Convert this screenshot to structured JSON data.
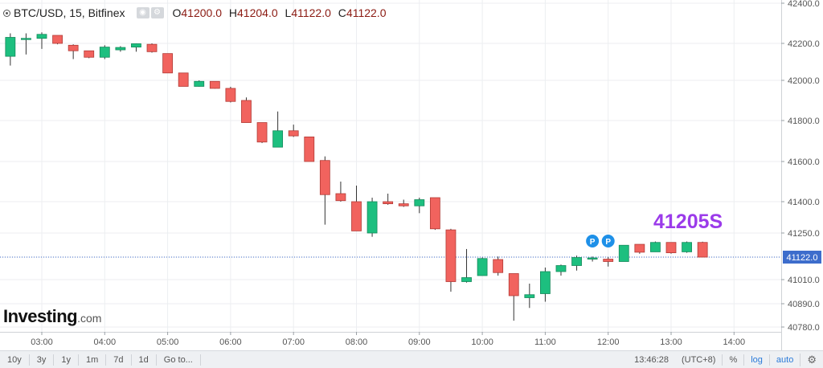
{
  "header": {
    "title": "BTC/USD, 15, Bitfinex",
    "ohlc": [
      {
        "k": "O",
        "v": "41200.0"
      },
      {
        "k": "H",
        "v": "41204.0"
      },
      {
        "k": "L",
        "v": "41122.0"
      },
      {
        "k": "C",
        "v": "41122.0"
      }
    ]
  },
  "logo": {
    "main": "Investing",
    "suffix": ".com"
  },
  "annotation": "41205S",
  "markers": [
    "P",
    "P"
  ],
  "price_label": "41122.0",
  "bottom_bar": {
    "ranges": [
      "10y",
      "3y",
      "1y",
      "1m",
      "7d",
      "1d",
      "Go to..."
    ],
    "time": "13:46:28",
    "tz": "(UTC+8)",
    "percent": "%",
    "log": "log",
    "auto": "auto"
  },
  "colors": {
    "up": "#1dbf7f",
    "down": "#f1635e",
    "grid": "#eceef1",
    "price_line": "#3d6dcc",
    "marker": "#1e90e8"
  },
  "chart_data": {
    "type": "candlestick",
    "title": "BTC/USD, 15, Bitfinex",
    "ylim": [
      40700,
      42450
    ],
    "y_ticks": [
      40780.0,
      40890.0,
      41010.0,
      41122.0,
      41250.0,
      41400.0,
      41600.0,
      41800.0,
      42000.0,
      42200.0,
      42400.0
    ],
    "y_tick_labels": [
      "40780.0",
      "40890.0",
      "41010.0",
      "",
      "41250.0",
      "41400.0",
      "41600.0",
      "41800.0",
      "42000.0",
      "42200.0",
      "42400.0"
    ],
    "x_tick_labels": [
      "03:00",
      "04:00",
      "05:00",
      "06:00",
      "07:00",
      "08:00",
      "09:00",
      "10:00",
      "11:00",
      "12:00",
      "13:00",
      "14:00"
    ],
    "x_ticks_hours": [
      3,
      4,
      5,
      6,
      7,
      8,
      9,
      10,
      11,
      12,
      13,
      14
    ],
    "last_price": 41122.0,
    "candles": [
      {
        "t": 2.5,
        "o": 42130,
        "h": 42250,
        "l": 42080,
        "c": 42230
      },
      {
        "t": 2.75,
        "o": 42220,
        "h": 42250,
        "l": 42140,
        "c": 42225
      },
      {
        "t": 3.0,
        "o": 42225,
        "h": 42255,
        "l": 42170,
        "c": 42245
      },
      {
        "t": 3.25,
        "o": 42240,
        "h": 42240,
        "l": 42195,
        "c": 42200
      },
      {
        "t": 3.5,
        "o": 42190,
        "h": 42195,
        "l": 42115,
        "c": 42160
      },
      {
        "t": 3.75,
        "o": 42160,
        "h": 42160,
        "l": 42120,
        "c": 42125
      },
      {
        "t": 4.0,
        "o": 42125,
        "h": 42190,
        "l": 42115,
        "c": 42180
      },
      {
        "t": 4.25,
        "o": 42165,
        "h": 42185,
        "l": 42155,
        "c": 42178
      },
      {
        "t": 4.5,
        "o": 42180,
        "h": 42200,
        "l": 42155,
        "c": 42198
      },
      {
        "t": 4.75,
        "o": 42195,
        "h": 42200,
        "l": 42150,
        "c": 42155
      },
      {
        "t": 5.0,
        "o": 42145,
        "h": 42145,
        "l": 42040,
        "c": 42040
      },
      {
        "t": 5.25,
        "o": 42040,
        "h": 42040,
        "l": 41970,
        "c": 41970
      },
      {
        "t": 5.5,
        "o": 41970,
        "h": 42000,
        "l": 41968,
        "c": 41995
      },
      {
        "t": 5.75,
        "o": 41995,
        "h": 41995,
        "l": 41958,
        "c": 41960
      },
      {
        "t": 6.0,
        "o": 41960,
        "h": 41968,
        "l": 41890,
        "c": 41895
      },
      {
        "t": 6.25,
        "o": 41900,
        "h": 41915,
        "l": 41790,
        "c": 41790
      },
      {
        "t": 6.5,
        "o": 41790,
        "h": 41790,
        "l": 41690,
        "c": 41695
      },
      {
        "t": 6.75,
        "o": 41670,
        "h": 41845,
        "l": 41670,
        "c": 41750
      },
      {
        "t": 7.0,
        "o": 41750,
        "h": 41780,
        "l": 41720,
        "c": 41725
      },
      {
        "t": 7.25,
        "o": 41720,
        "h": 41720,
        "l": 41600,
        "c": 41600
      },
      {
        "t": 7.5,
        "o": 41605,
        "h": 41625,
        "l": 41290,
        "c": 41435
      },
      {
        "t": 7.75,
        "o": 41440,
        "h": 41500,
        "l": 41400,
        "c": 41405
      },
      {
        "t": 8.0,
        "o": 41400,
        "h": 41480,
        "l": 41260,
        "c": 41260
      },
      {
        "t": 8.25,
        "o": 41250,
        "h": 41420,
        "l": 41230,
        "c": 41400
      },
      {
        "t": 8.5,
        "o": 41400,
        "h": 41440,
        "l": 41385,
        "c": 41390
      },
      {
        "t": 8.75,
        "o": 41390,
        "h": 41410,
        "l": 41375,
        "c": 41380
      },
      {
        "t": 9.0,
        "o": 41380,
        "h": 41420,
        "l": 41345,
        "c": 41410
      },
      {
        "t": 9.25,
        "o": 41420,
        "h": 41420,
        "l": 41265,
        "c": 41270
      },
      {
        "t": 9.5,
        "o": 41265,
        "h": 41270,
        "l": 40950,
        "c": 41000
      },
      {
        "t": 9.75,
        "o": 41000,
        "h": 41165,
        "l": 40995,
        "c": 41020
      },
      {
        "t": 10.0,
        "o": 41030,
        "h": 41120,
        "l": 41030,
        "c": 41115
      },
      {
        "t": 10.25,
        "o": 41110,
        "h": 41125,
        "l": 41030,
        "c": 41045
      },
      {
        "t": 10.5,
        "o": 41040,
        "h": 41040,
        "l": 40810,
        "c": 40930
      },
      {
        "t": 10.75,
        "o": 40920,
        "h": 40990,
        "l": 40870,
        "c": 40935
      },
      {
        "t": 11.0,
        "o": 40940,
        "h": 41070,
        "l": 40900,
        "c": 41050
      },
      {
        "t": 11.25,
        "o": 41050,
        "h": 41085,
        "l": 41030,
        "c": 41080
      },
      {
        "t": 11.5,
        "o": 41080,
        "h": 41130,
        "l": 41055,
        "c": 41120
      },
      {
        "t": 11.75,
        "o": 41115,
        "h": 41125,
        "l": 41100,
        "c": 41118
      },
      {
        "t": 12.0,
        "o": 41112,
        "h": 41122,
        "l": 41075,
        "c": 41100
      },
      {
        "t": 12.25,
        "o": 41100,
        "h": 41180,
        "l": 41100,
        "c": 41185
      },
      {
        "t": 12.5,
        "o": 41190,
        "h": 41190,
        "l": 41140,
        "c": 41148
      },
      {
        "t": 12.75,
        "o": 41150,
        "h": 41205,
        "l": 41150,
        "c": 41200
      },
      {
        "t": 13.0,
        "o": 41200,
        "h": 41200,
        "l": 41140,
        "c": 41145
      },
      {
        "t": 13.25,
        "o": 41150,
        "h": 41205,
        "l": 41145,
        "c": 41200
      },
      {
        "t": 13.5,
        "o": 41200,
        "h": 41204,
        "l": 41122,
        "c": 41122
      }
    ],
    "markers": [
      {
        "t": 11.75,
        "label": "P"
      },
      {
        "t": 12.0,
        "label": "P"
      }
    ]
  }
}
